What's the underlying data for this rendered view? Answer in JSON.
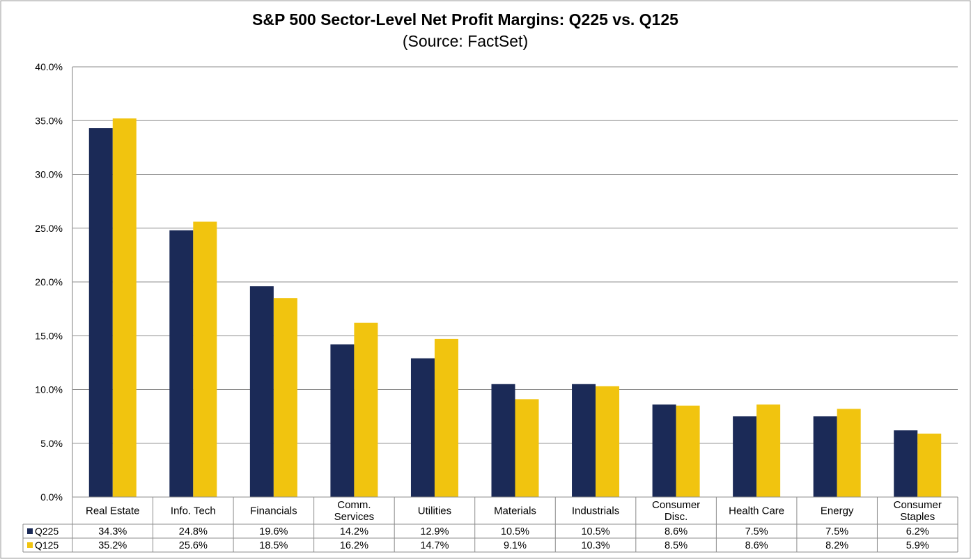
{
  "chart_data": {
    "type": "bar",
    "title": "S&P 500 Sector-Level Net Profit Margins: Q225 vs. Q125",
    "subtitle": "(Source: FactSet)",
    "categories": [
      [
        "Real Estate"
      ],
      [
        "Info. Tech"
      ],
      [
        "Financials"
      ],
      [
        "Comm.",
        "Services"
      ],
      [
        "Utilities"
      ],
      [
        "Materials"
      ],
      [
        "Industrials"
      ],
      [
        "Consumer",
        "Disc."
      ],
      [
        "Health Care"
      ],
      [
        "Energy"
      ],
      [
        "Consumer",
        "Staples"
      ]
    ],
    "series": [
      {
        "name": "Q225",
        "color": "#1b2a57",
        "values": [
          34.3,
          24.8,
          19.6,
          14.2,
          12.9,
          10.5,
          10.5,
          8.6,
          7.5,
          7.5,
          6.2
        ],
        "labels": [
          "34.3%",
          "24.8%",
          "19.6%",
          "14.2%",
          "12.9%",
          "10.5%",
          "10.5%",
          "8.6%",
          "7.5%",
          "7.5%",
          "6.2%"
        ]
      },
      {
        "name": "Q125",
        "color": "#f1c40f",
        "values": [
          35.2,
          25.6,
          18.5,
          16.2,
          14.7,
          9.1,
          10.3,
          8.5,
          8.6,
          8.2,
          5.9
        ],
        "labels": [
          "35.2%",
          "25.6%",
          "18.5%",
          "16.2%",
          "14.7%",
          "9.1%",
          "10.3%",
          "8.5%",
          "8.6%",
          "8.2%",
          "5.9%"
        ]
      }
    ],
    "ylim": [
      0,
      40
    ],
    "yticks": [
      "0.0%",
      "5.0%",
      "10.0%",
      "15.0%",
      "20.0%",
      "25.0%",
      "30.0%",
      "35.0%",
      "40.0%"
    ],
    "grid": true,
    "legend": "data table (bottom-left)"
  }
}
